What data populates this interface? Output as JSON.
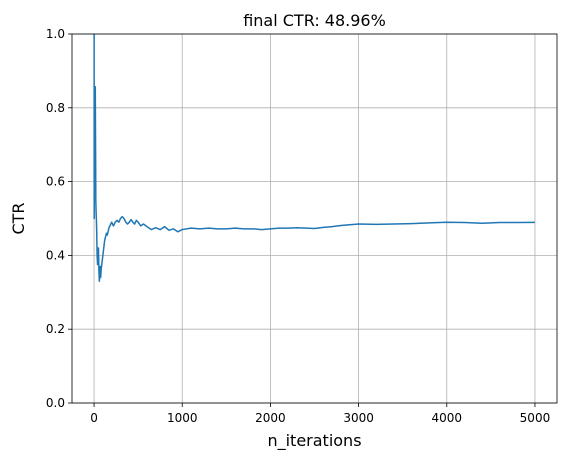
{
  "chart_data": {
    "type": "line",
    "title": "final CTR: 48.96%",
    "xlabel": "n_iterations",
    "ylabel": "CTR",
    "xlim": [
      -250,
      5250
    ],
    "ylim": [
      0.0,
      1.0
    ],
    "grid": true,
    "x_ticks": [
      0,
      1000,
      2000,
      3000,
      4000,
      5000
    ],
    "x_tick_labels": [
      "0",
      "1000",
      "2000",
      "3000",
      "4000",
      "5000"
    ],
    "y_ticks": [
      0.0,
      0.2,
      0.4,
      0.6,
      0.8,
      1.0
    ],
    "y_tick_labels": [
      "0.0",
      "0.2",
      "0.4",
      "0.6",
      "0.8",
      "1.0"
    ],
    "series": [
      {
        "color": "#1f77b4",
        "x": [
          1,
          2,
          3,
          4,
          5,
          6,
          7,
          8,
          9,
          10,
          12,
          14,
          16,
          18,
          20,
          23,
          26,
          30,
          35,
          40,
          45,
          50,
          55,
          60,
          65,
          70,
          75,
          80,
          90,
          100,
          110,
          120,
          130,
          140,
          150,
          160,
          170,
          180,
          190,
          200,
          220,
          240,
          260,
          280,
          300,
          320,
          340,
          360,
          380,
          400,
          420,
          440,
          460,
          480,
          500,
          530,
          560,
          600,
          650,
          700,
          750,
          800,
          850,
          900,
          950,
          1000,
          1100,
          1200,
          1300,
          1400,
          1500,
          1600,
          1700,
          1800,
          1900,
          2000,
          2100,
          2200,
          2300,
          2400,
          2500,
          2600,
          2700,
          2800,
          2900,
          3000,
          3200,
          3400,
          3600,
          3800,
          4000,
          4200,
          4400,
          4600,
          4800,
          5000
        ],
        "y": [
          1.0,
          0.5,
          0.667,
          0.75,
          0.6,
          0.667,
          0.714,
          0.75,
          0.778,
          0.8,
          0.833,
          0.857,
          0.75,
          0.667,
          0.55,
          0.52,
          0.5,
          0.467,
          0.4,
          0.375,
          0.4,
          0.42,
          0.36,
          0.33,
          0.35,
          0.37,
          0.34,
          0.36,
          0.38,
          0.4,
          0.42,
          0.44,
          0.45,
          0.46,
          0.455,
          0.465,
          0.475,
          0.48,
          0.485,
          0.49,
          0.48,
          0.49,
          0.495,
          0.49,
          0.5,
          0.505,
          0.5,
          0.49,
          0.485,
          0.49,
          0.497,
          0.49,
          0.485,
          0.495,
          0.49,
          0.48,
          0.485,
          0.478,
          0.47,
          0.475,
          0.47,
          0.478,
          0.468,
          0.472,
          0.464,
          0.47,
          0.474,
          0.472,
          0.474,
          0.472,
          0.472,
          0.474,
          0.472,
          0.472,
          0.47,
          0.472,
          0.474,
          0.474,
          0.475,
          0.474,
          0.473,
          0.476,
          0.478,
          0.481,
          0.483,
          0.485,
          0.484,
          0.485,
          0.486,
          0.488,
          0.49,
          0.489,
          0.487,
          0.489,
          0.489,
          0.4896
        ]
      }
    ]
  }
}
